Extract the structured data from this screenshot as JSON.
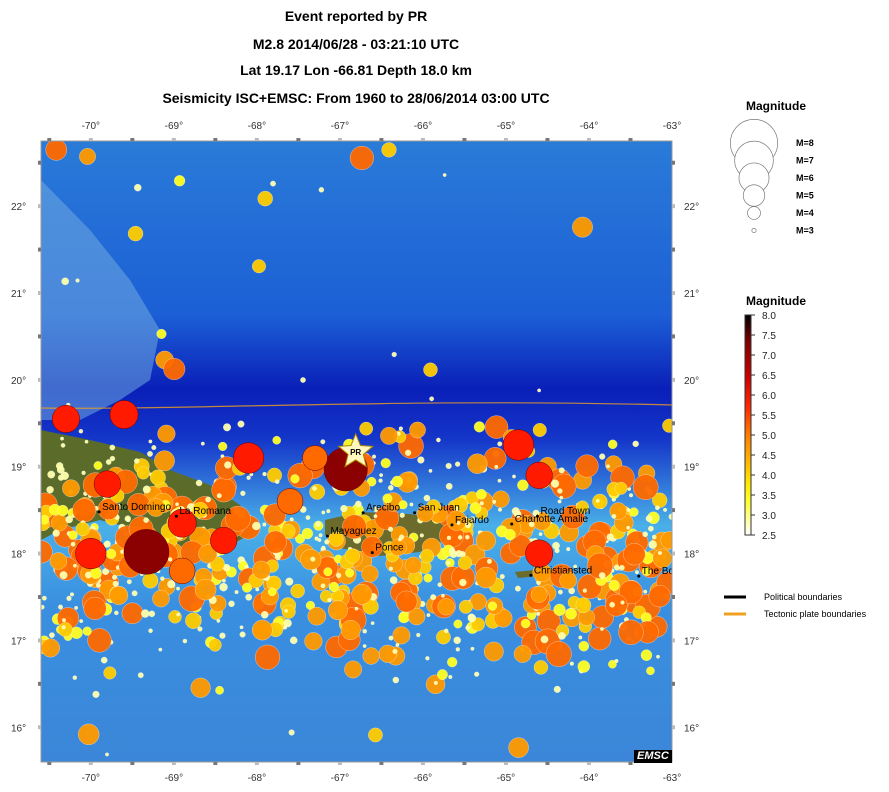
{
  "header": {
    "line1": "Event reported by PR",
    "line2": "M2.8  2014/06/28 - 03:21:10 UTC",
    "line3": "Lat 19.17    Lon -66.81     Depth  18.0 km",
    "line4": "Seismicity ISC+EMSC: From 1960 to 28/06/2014 03:00 UTC"
  },
  "map": {
    "lon_ticks": [
      "-70°",
      "-69°",
      "-68°",
      "-67°",
      "-66°",
      "-65°",
      "-64°",
      "-63°"
    ],
    "lon_values": [
      -70,
      -69,
      -68,
      -67,
      -66,
      -65,
      -64,
      -63
    ],
    "lat_ticks": [
      "22°",
      "21°",
      "20°",
      "19°",
      "18°",
      "17°",
      "16°"
    ],
    "lat_values": [
      22,
      21,
      20,
      19,
      18,
      17,
      16
    ],
    "event_marker_label": "PR",
    "event": {
      "lon": -66.81,
      "lat": 19.17
    },
    "badge": "EMSC",
    "cities": [
      {
        "name": "Santo Domingo",
        "lon": -69.9,
        "lat": 18.48
      },
      {
        "name": "La Romana",
        "lon": -68.97,
        "lat": 18.43
      },
      {
        "name": "Mayaguez",
        "lon": -67.15,
        "lat": 18.2
      },
      {
        "name": "Arecibo",
        "lon": -66.72,
        "lat": 18.47
      },
      {
        "name": "San Juan",
        "lon": -66.1,
        "lat": 18.47
      },
      {
        "name": "Fajardo",
        "lon": -65.65,
        "lat": 18.33
      },
      {
        "name": "Ponce",
        "lon": -66.61,
        "lat": 18.01
      },
      {
        "name": "Charlotte Amalie",
        "lon": -64.93,
        "lat": 18.34
      },
      {
        "name": "Road Town",
        "lon": -64.62,
        "lat": 18.43
      },
      {
        "name": "Christiansted",
        "lon": -64.7,
        "lat": 17.75
      },
      {
        "name": "The Bo",
        "lon": -63.4,
        "lat": 17.74
      }
    ],
    "quakes_big": [
      {
        "lon": -69.33,
        "lat": 18.02,
        "mag": 7.8
      },
      {
        "lon": -66.93,
        "lat": 18.97,
        "mag": 7.6
      },
      {
        "lon": -64.85,
        "lat": 19.25,
        "mag": 6.0
      },
      {
        "lon": -68.1,
        "lat": 19.1,
        "mag": 6.0
      },
      {
        "lon": -70.0,
        "lat": 18.0,
        "mag": 6.0
      },
      {
        "lon": -69.8,
        "lat": 18.8,
        "mag": 5.5
      },
      {
        "lon": -70.3,
        "lat": 19.55,
        "mag": 5.6
      },
      {
        "lon": -69.6,
        "lat": 19.6,
        "mag": 5.7
      },
      {
        "lon": -68.9,
        "lat": 18.35,
        "mag": 5.7
      },
      {
        "lon": -64.6,
        "lat": 18.0,
        "mag": 5.6
      },
      {
        "lon": -68.9,
        "lat": 17.8,
        "mag": 5.4
      },
      {
        "lon": -68.4,
        "lat": 18.15,
        "mag": 5.5
      },
      {
        "lon": -67.6,
        "lat": 18.6,
        "mag": 5.4
      },
      {
        "lon": -64.6,
        "lat": 18.9,
        "mag": 5.5
      },
      {
        "lon": -67.3,
        "lat": 19.1,
        "mag": 5.3
      }
    ]
  },
  "legend": {
    "size_title": "Magnitude",
    "size_items": [
      {
        "label": "M=8",
        "mag": 8
      },
      {
        "label": "M=7",
        "mag": 7
      },
      {
        "label": "M=6",
        "mag": 6
      },
      {
        "label": "M=5",
        "mag": 5
      },
      {
        "label": "M=4",
        "mag": 4
      },
      {
        "label": "M=3",
        "mag": 3
      }
    ],
    "color_title": "Magnitude",
    "color_ticks": [
      "8.0",
      "7.5",
      "7.0",
      "6.5",
      "6.0",
      "5.5",
      "5.0",
      "4.5",
      "4.0",
      "3.5",
      "3.0",
      "2.5"
    ],
    "color_stops": [
      "#000000",
      "#7f0000",
      "#cc0000",
      "#ff2a00",
      "#ff7f00",
      "#ffb300",
      "#ffe600",
      "#ffff33",
      "#ffffff"
    ],
    "lines": [
      {
        "label": "Political boundaries",
        "color": "#000000"
      },
      {
        "label": "Tectonic plate boundaries",
        "color": "#f0a020"
      }
    ]
  }
}
